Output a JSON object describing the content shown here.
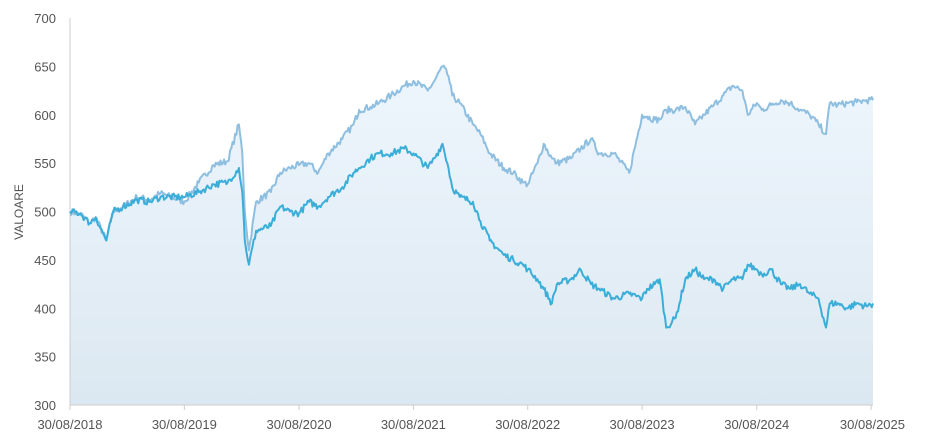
{
  "chart_data": {
    "type": "line",
    "ylabel": "VALOARE",
    "ylim": [
      300,
      700
    ],
    "yticks": [
      300,
      350,
      400,
      450,
      500,
      550,
      600,
      650,
      700
    ],
    "xlim": [
      "2018-08-30",
      "2025-09-05"
    ],
    "xticks": [
      "30/08/2018",
      "30/08/2019",
      "30/08/2020",
      "30/08/2021",
      "30/08/2022",
      "30/08/2023",
      "30/08/2024",
      "30/08/2025"
    ],
    "grid": false,
    "colors": {
      "upper": "#8fbfe0",
      "lower": "#3aaed8",
      "area_top": "#eef6fd",
      "area_bottom": "#dce8f1"
    },
    "series": [
      {
        "x": [
          "2018-08-30",
          "2018-10-01",
          "2018-11-01",
          "2018-11-20",
          "2018-12-24",
          "2019-01-15",
          "2019-02-15",
          "2019-04-01",
          "2019-05-10",
          "2019-06-15",
          "2019-08-30",
          "2019-10-15",
          "2019-12-01",
          "2020-01-15",
          "2020-02-20",
          "2020-03-02",
          "2020-03-10",
          "2020-03-23",
          "2020-04-15",
          "2020-06-01",
          "2020-07-01",
          "2020-08-01",
          "2020-08-30",
          "2020-10-01",
          "2020-10-30",
          "2020-12-01",
          "2021-01-15",
          "2021-02-20",
          "2021-03-10",
          "2021-04-15",
          "2021-05-12",
          "2021-06-20",
          "2021-08-01",
          "2021-08-30",
          "2021-10-15",
          "2021-11-05",
          "2021-12-01",
          "2021-12-20",
          "2022-01-01",
          "2022-01-25",
          "2022-03-08",
          "2022-04-01",
          "2022-05-01",
          "2022-06-15",
          "2022-07-15",
          "2022-08-15",
          "2022-08-30",
          "2022-09-30",
          "2022-10-20",
          "2022-11-15",
          "2022-12-01",
          "2023-01-15",
          "2023-02-15",
          "2023-03-20",
          "2023-04-15",
          "2023-06-01",
          "2023-07-20",
          "2023-08-30",
          "2023-09-15",
          "2023-10-10",
          "2023-10-25",
          "2023-11-15",
          "2023-12-15",
          "2024-01-15",
          "2024-02-15",
          "2024-03-15",
          "2024-04-15",
          "2024-05-15",
          "2024-06-15",
          "2024-07-15",
          "2024-08-01",
          "2024-08-30",
          "2024-09-15",
          "2024-10-15",
          "2024-11-15",
          "2024-12-15",
          "2025-01-15",
          "2025-02-15",
          "2025-03-15",
          "2025-04-08",
          "2025-04-20",
          "2025-05-15",
          "2025-06-15",
          "2025-07-15",
          "2025-08-15",
          "2025-09-05"
        ],
        "y": [
          500,
          498,
          488,
          494,
          470,
          500,
          505,
          515,
          512,
          519,
          510,
          530,
          548,
          552,
          590,
          560,
          500,
          460,
          510,
          520,
          540,
          545,
          548,
          550,
          540,
          560,
          575,
          590,
          605,
          608,
          612,
          620,
          630,
          635,
          625,
          635,
          650,
          640,
          620,
          612,
          590,
          580,
          560,
          545,
          540,
          530,
          528,
          550,
          570,
          555,
          550,
          555,
          565,
          575,
          560,
          560,
          540,
          600,
          598,
          595,
          595,
          605,
          605,
          608,
          590,
          600,
          610,
          620,
          630,
          625,
          600,
          612,
          605,
          610,
          615,
          612,
          605,
          600,
          590,
          580,
          612,
          610,
          612,
          613,
          615,
          615
        ]
      },
      {
        "x": [
          "2018-08-30",
          "2018-10-01",
          "2018-11-01",
          "2018-11-20",
          "2018-12-24",
          "2019-01-15",
          "2019-02-15",
          "2019-04-01",
          "2019-05-10",
          "2019-06-15",
          "2019-08-30",
          "2019-10-15",
          "2019-12-01",
          "2020-01-15",
          "2020-02-20",
          "2020-03-02",
          "2020-03-10",
          "2020-03-23",
          "2020-04-15",
          "2020-06-01",
          "2020-07-01",
          "2020-08-01",
          "2020-08-30",
          "2020-10-01",
          "2020-10-30",
          "2020-12-01",
          "2021-01-15",
          "2021-02-20",
          "2021-03-10",
          "2021-04-15",
          "2021-05-12",
          "2021-06-20",
          "2021-08-01",
          "2021-08-30",
          "2021-10-15",
          "2021-11-05",
          "2021-12-01",
          "2021-12-20",
          "2022-01-01",
          "2022-01-25",
          "2022-03-08",
          "2022-04-01",
          "2022-05-01",
          "2022-06-15",
          "2022-07-15",
          "2022-08-15",
          "2022-08-30",
          "2022-09-30",
          "2022-10-20",
          "2022-11-15",
          "2022-12-01",
          "2023-01-15",
          "2023-02-15",
          "2023-03-20",
          "2023-04-15",
          "2023-06-01",
          "2023-07-20",
          "2023-08-30",
          "2023-09-15",
          "2023-10-10",
          "2023-10-25",
          "2023-11-15",
          "2023-12-15",
          "2024-01-15",
          "2024-02-15",
          "2024-03-15",
          "2024-04-15",
          "2024-05-15",
          "2024-06-15",
          "2024-07-15",
          "2024-08-01",
          "2024-08-30",
          "2024-09-15",
          "2024-10-15",
          "2024-11-15",
          "2024-12-15",
          "2025-01-15",
          "2025-02-15",
          "2025-03-15",
          "2025-04-08",
          "2025-04-20",
          "2025-05-15",
          "2025-06-15",
          "2025-07-15",
          "2025-08-15",
          "2025-09-05"
        ],
        "y": [
          500,
          498,
          488,
          494,
          470,
          500,
          505,
          512,
          510,
          515,
          515,
          520,
          528,
          530,
          545,
          520,
          470,
          445,
          480,
          485,
          505,
          500,
          498,
          510,
          505,
          515,
          525,
          540,
          545,
          555,
          560,
          560,
          565,
          560,
          545,
          555,
          570,
          545,
          525,
          515,
          510,
          490,
          470,
          455,
          450,
          445,
          440,
          430,
          420,
          405,
          425,
          430,
          440,
          425,
          420,
          410,
          415,
          410,
          420,
          425,
          430,
          380,
          390,
          430,
          440,
          430,
          430,
          420,
          430,
          430,
          445,
          440,
          435,
          440,
          425,
          420,
          425,
          415,
          410,
          380,
          405,
          405,
          400,
          405,
          402,
          405
        ]
      }
    ]
  }
}
